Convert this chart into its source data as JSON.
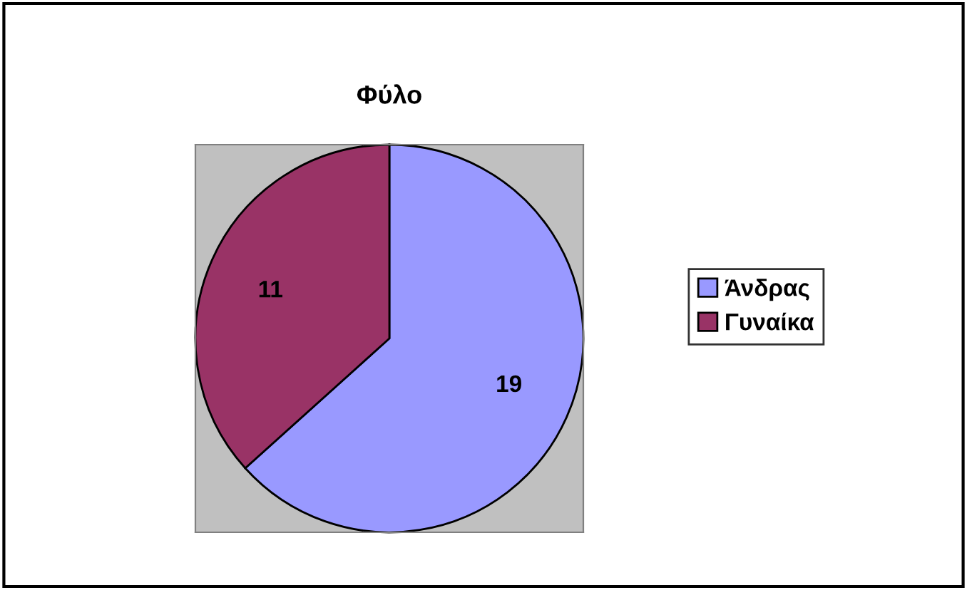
{
  "chart_data": {
    "type": "pie",
    "title": "Φύλο",
    "categories": [
      "Άνδρας",
      "Γυναίκα"
    ],
    "values": [
      19,
      11
    ],
    "colors": [
      "#9999ff",
      "#993366"
    ],
    "data_labels": true,
    "legend": "right"
  }
}
